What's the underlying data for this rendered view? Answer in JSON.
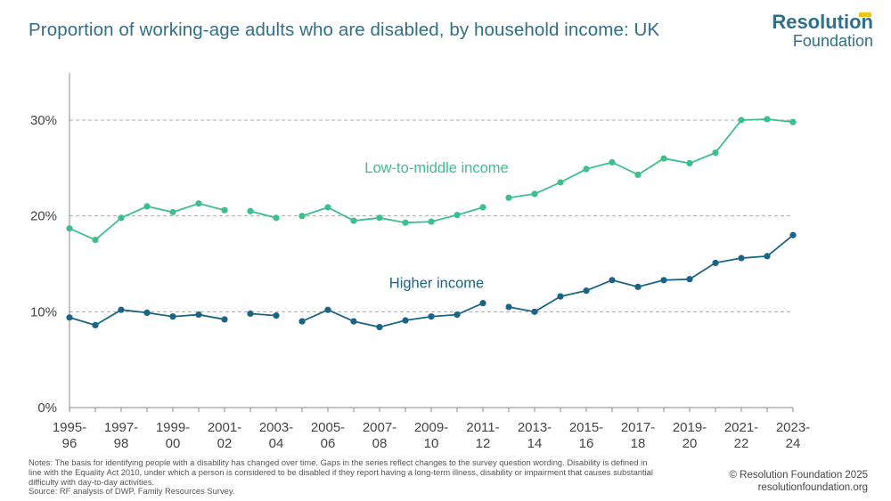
{
  "header": {
    "title": "Proportion of working-age adults who are disabled, by household income: UK",
    "logo_line1": "Resolution",
    "logo_line2": "Foundation"
  },
  "footer": {
    "notes_line1": "Notes: The basis for identifying people with a disability has changed over time. Gaps in the series reflect changes to the survey question wording. Disability is defined in",
    "notes_line2": "line with the Equality Act 2010, under which a person is considered to be disabled if they report having a long-term illness, disability or impairment that causes substantial",
    "notes_line3": "difficulty with day-to-day activities.",
    "source": "Source: RF analysis of DWP, Family Resources Survey.",
    "copyright": "© Resolution Foundation 2025",
    "website": "resolutionfoundation.org"
  },
  "colors": {
    "title": "#2f6f8a",
    "low_middle": "#3cbf8c",
    "higher": "#1a6486",
    "grid": "#aaaaaa",
    "axis": "#888888",
    "accent": "#f3c319"
  },
  "chart_data": {
    "type": "line",
    "title": "Proportion of working-age adults who are disabled, by household income: UK",
    "xlabel": "",
    "ylabel": "",
    "ylim": [
      0,
      35
    ],
    "yticks": [
      0,
      10,
      20,
      30
    ],
    "ytick_labels": [
      "0%",
      "10%",
      "20%",
      "30%"
    ],
    "grid": "horizontal dashed",
    "categories": [
      "1995-96",
      "1996-97",
      "1997-98",
      "1998-99",
      "1999-00",
      "2000-01",
      "2001-02",
      "2002-03",
      "2003-04",
      "2004-05",
      "2005-06",
      "2006-07",
      "2007-08",
      "2008-09",
      "2009-10",
      "2010-11",
      "2011-12",
      "2012-13",
      "2013-14",
      "2014-15",
      "2015-16",
      "2016-17",
      "2017-18",
      "2018-19",
      "2019-20",
      "2020-21",
      "2021-22",
      "2022-23",
      "2023-24"
    ],
    "xtick_labels": [
      {
        "index": 0,
        "line1": "1995-",
        "line2": "96"
      },
      {
        "index": 2,
        "line1": "1997-",
        "line2": "98"
      },
      {
        "index": 4,
        "line1": "1999-",
        "line2": "00"
      },
      {
        "index": 6,
        "line1": "2001-",
        "line2": "02"
      },
      {
        "index": 8,
        "line1": "2003-",
        "line2": "04"
      },
      {
        "index": 10,
        "line1": "2005-",
        "line2": "06"
      },
      {
        "index": 12,
        "line1": "2007-",
        "line2": "08"
      },
      {
        "index": 14,
        "line1": "2009-",
        "line2": "10"
      },
      {
        "index": 16,
        "line1": "2011-",
        "line2": "12"
      },
      {
        "index": 18,
        "line1": "2013-",
        "line2": "14"
      },
      {
        "index": 20,
        "line1": "2015-",
        "line2": "16"
      },
      {
        "index": 22,
        "line1": "2017-",
        "line2": "18"
      },
      {
        "index": 24,
        "line1": "2019-",
        "line2": "20"
      },
      {
        "index": 26,
        "line1": "2021-",
        "line2": "22"
      },
      {
        "index": 28,
        "line1": "2023-",
        "line2": "24"
      }
    ],
    "series": [
      {
        "name": "Low-to-middle income",
        "color_key": "low_middle",
        "values": [
          18.7,
          17.5,
          19.8,
          21.0,
          20.4,
          21.3,
          20.6,
          20.5,
          19.8,
          20.0,
          20.9,
          19.5,
          19.8,
          19.3,
          19.4,
          20.1,
          20.9,
          21.9,
          22.3,
          23.5,
          24.9,
          25.6,
          24.3,
          26.0,
          25.5,
          26.6,
          30.0,
          30.1,
          29.8
        ],
        "segments": [
          [
            0,
            6
          ],
          [
            7,
            8
          ],
          [
            9,
            16
          ],
          [
            17,
            28
          ]
        ],
        "label_anchor_index": 14,
        "label_anchor_value": 24.5
      },
      {
        "name": "Higher income",
        "color_key": "higher",
        "values": [
          9.4,
          8.6,
          10.2,
          9.9,
          9.5,
          9.7,
          9.2,
          9.8,
          9.6,
          9.0,
          10.2,
          9.0,
          8.4,
          9.1,
          9.5,
          9.7,
          10.9,
          10.5,
          10.0,
          11.6,
          12.2,
          13.3,
          12.6,
          13.3,
          13.4,
          15.1,
          15.6,
          15.8,
          18.0
        ],
        "segments": [
          [
            0,
            6
          ],
          [
            7,
            8
          ],
          [
            9,
            16
          ],
          [
            17,
            28
          ]
        ],
        "label_anchor_index": 14,
        "label_anchor_value": 12.5
      }
    ]
  }
}
